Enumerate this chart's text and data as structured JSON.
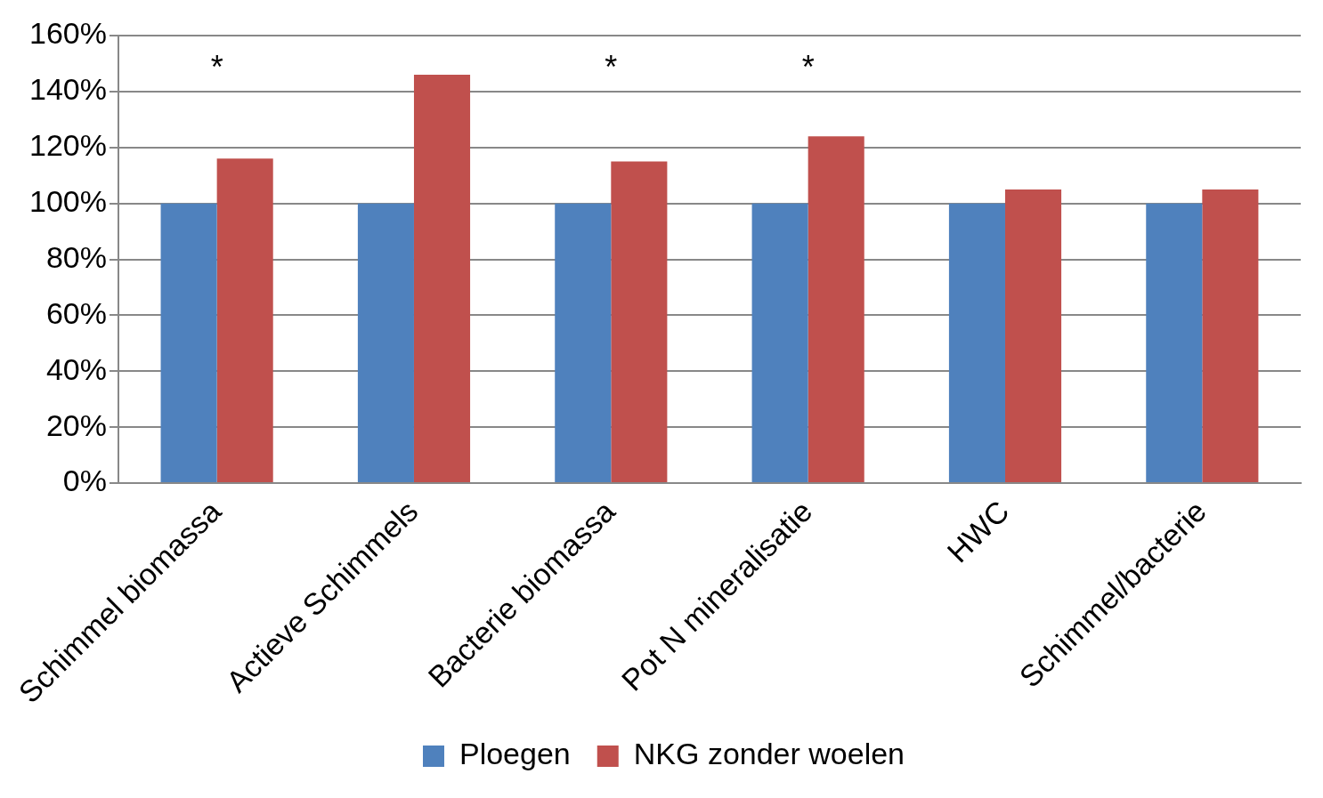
{
  "chart_data": {
    "type": "bar",
    "categories": [
      "Schimmel biomassa",
      "Actieve Schimmels",
      "Bacterie biomassa",
      "Pot N mineralisatie",
      "HWC",
      "Schimmel/bacterie"
    ],
    "series": [
      {
        "name": "Ploegen",
        "color": "#4f81bd",
        "values": [
          100,
          100,
          100,
          100,
          100,
          100
        ]
      },
      {
        "name": "NKG zonder woelen",
        "color": "#c0504d",
        "values": [
          116,
          146,
          115,
          124,
          105,
          105
        ]
      }
    ],
    "ylim": [
      0,
      160
    ],
    "yticks": [
      {
        "value": 0,
        "label": "0%"
      },
      {
        "value": 20,
        "label": "20%"
      },
      {
        "value": 40,
        "label": "40%"
      },
      {
        "value": 60,
        "label": "60%"
      },
      {
        "value": 80,
        "label": "80%"
      },
      {
        "value": 100,
        "label": "100%"
      },
      {
        "value": 120,
        "label": "120%"
      },
      {
        "value": 140,
        "label": "140%"
      },
      {
        "value": 160,
        "label": "160%"
      }
    ],
    "grid": "y",
    "legend": "bottom",
    "annotations": [
      "*",
      "*",
      "*"
    ]
  }
}
